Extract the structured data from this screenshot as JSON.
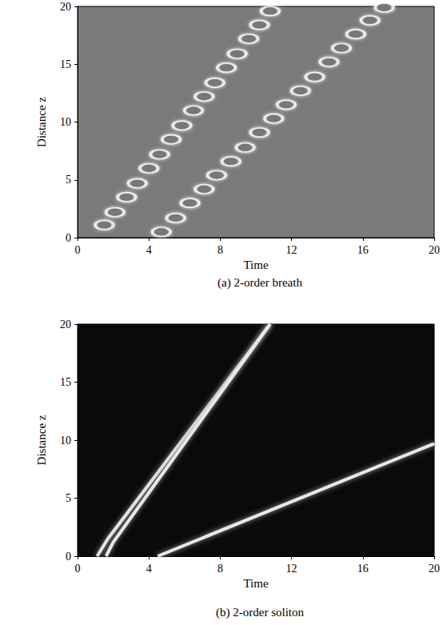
{
  "chart_data": [
    {
      "type": "scatter",
      "title": "(a) 2-order breath",
      "xlabel": "Time",
      "ylabel": "Distance z",
      "xlim": [
        0,
        20
      ],
      "ylim": [
        0,
        20
      ],
      "xticks": [
        0,
        4,
        8,
        12,
        16,
        20
      ],
      "yticks": [
        0,
        5,
        10,
        15,
        20
      ],
      "grid": false,
      "series": [
        {
          "color": "#ffffff",
          "marker": "ellipse",
          "x": [
            1.5,
            2.1,
            2.75,
            3.35,
            4.0,
            4.6,
            5.25,
            5.85,
            6.5,
            7.1,
            7.7,
            8.35,
            8.95,
            9.6,
            10.2,
            10.8
          ],
          "values": [
            1.1,
            2.2,
            3.5,
            4.7,
            6.0,
            7.2,
            8.5,
            9.7,
            11.0,
            12.2,
            13.4,
            14.7,
            15.9,
            17.2,
            18.4,
            19.6
          ]
        },
        {
          "color": "#ffffff",
          "marker": "ellipse",
          "x": [
            4.7,
            5.5,
            6.3,
            7.1,
            7.8,
            8.6,
            9.4,
            10.2,
            11.0,
            11.7,
            12.5,
            13.3,
            14.1,
            14.8,
            15.6,
            16.4,
            17.2
          ],
          "values": [
            0.5,
            1.7,
            3.0,
            4.2,
            5.4,
            6.6,
            7.8,
            9.1,
            10.3,
            11.5,
            12.7,
            13.9,
            15.2,
            16.4,
            17.6,
            18.8,
            19.9
          ]
        }
      ]
    },
    {
      "type": "line",
      "title": "(b) 2-order soliton",
      "xlabel": "Time",
      "ylabel": "Distance z",
      "xlim": [
        0,
        20
      ],
      "ylim": [
        0,
        20
      ],
      "xticks": [
        0,
        4,
        8,
        12,
        16,
        20
      ],
      "yticks": [
        0,
        5,
        10,
        15,
        20
      ],
      "grid": false,
      "series": [
        {
          "color": "#e8e8e8",
          "line_style": "solid",
          "x": [
            1.1,
            1.7,
            10.8
          ],
          "values": [
            0,
            1.5,
            20
          ]
        },
        {
          "color": "#e8e8e8",
          "line_style": "solid",
          "x": [
            1.6,
            2.0,
            10.8
          ],
          "values": [
            0,
            1.2,
            20
          ]
        },
        {
          "color": "#e8e8e8",
          "line_style": "solid",
          "x": [
            4.5,
            20
          ],
          "values": [
            0,
            9.7
          ]
        }
      ]
    }
  ]
}
